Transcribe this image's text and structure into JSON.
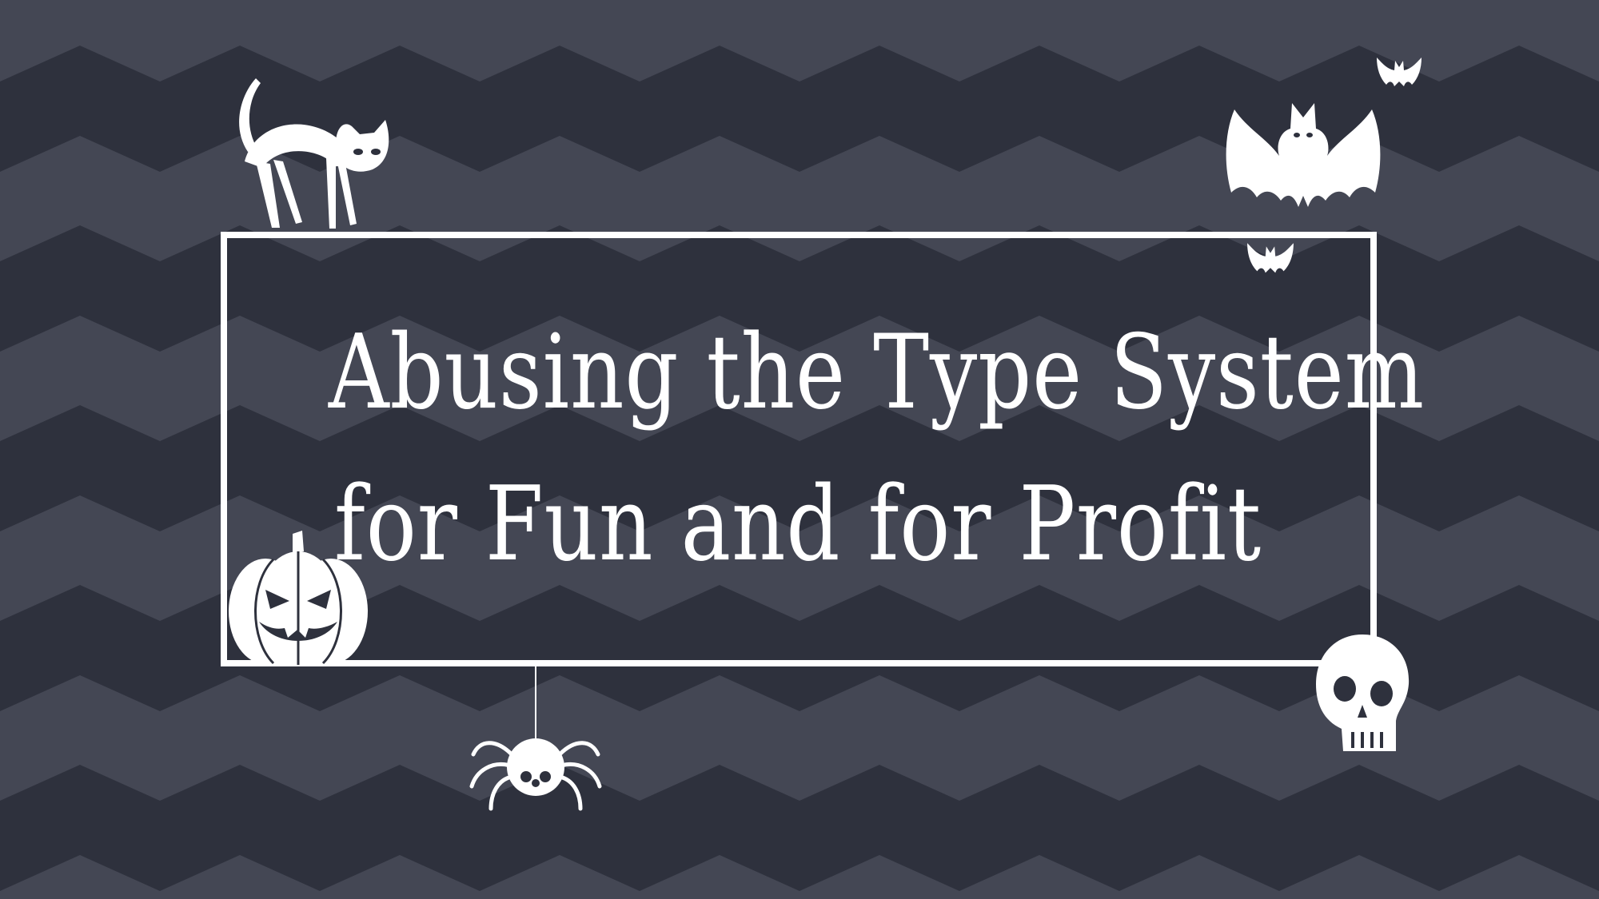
{
  "slide": {
    "title_lines": [
      "Abusing the Type System",
      "for Fun and for Profit"
    ]
  },
  "colors": {
    "background_dark": "#2e313d",
    "background_light": "#444754",
    "foreground": "#ffffff"
  },
  "icons": [
    "cat-icon",
    "bat-icon",
    "pumpkin-icon",
    "spider-icon",
    "skull-icon"
  ]
}
